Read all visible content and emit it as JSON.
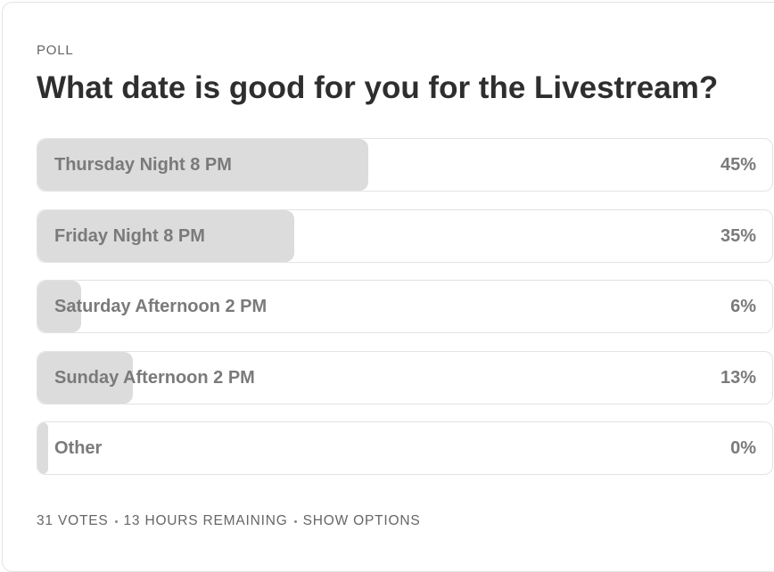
{
  "poll": {
    "kicker": "POLL",
    "question": "What date is good for you for the Livestream?",
    "options": [
      {
        "label": "Thursday Night 8 PM",
        "percent": 45,
        "percent_label": "45%"
      },
      {
        "label": "Friday Night 8 PM",
        "percent": 35,
        "percent_label": "35%"
      },
      {
        "label": "Saturday Afternoon 2 PM",
        "percent": 6,
        "percent_label": "6%"
      },
      {
        "label": "Sunday Afternoon 2 PM",
        "percent": 13,
        "percent_label": "13%"
      },
      {
        "label": "Other",
        "percent": 0,
        "percent_label": "0%"
      }
    ],
    "footer": [
      "31 VOTES",
      "13 HOURS REMAINING",
      "SHOW OPTIONS"
    ]
  }
}
